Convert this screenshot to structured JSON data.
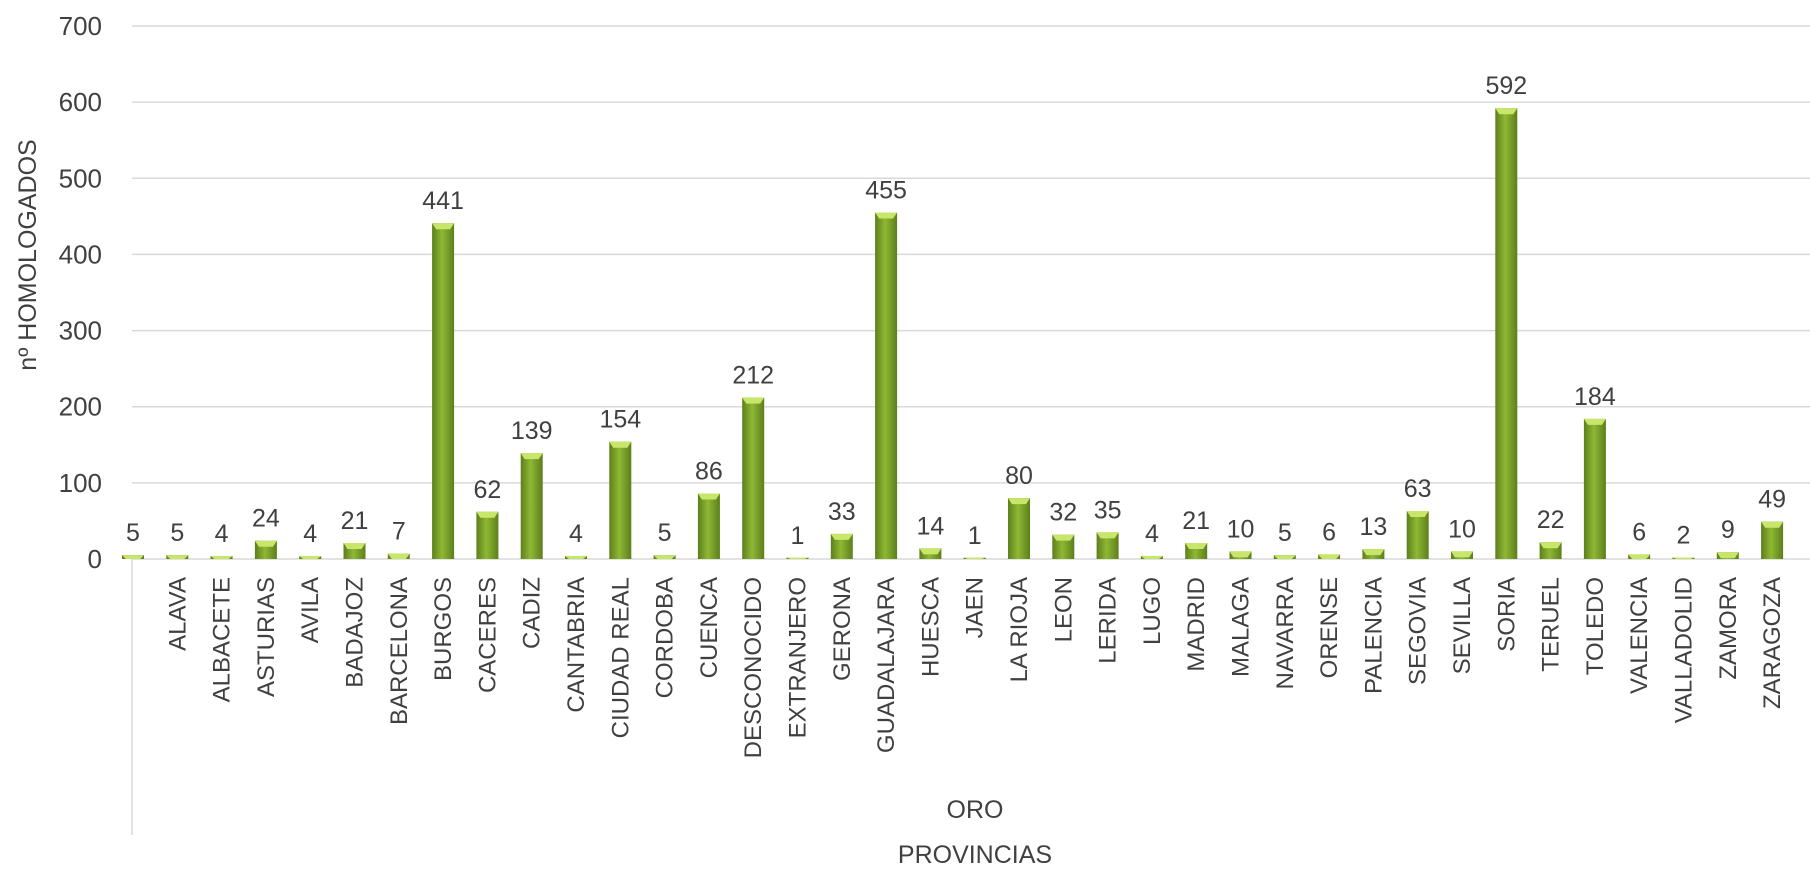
{
  "chart_data": {
    "type": "bar",
    "title": "",
    "xlabel": "PROVINCIAS",
    "ylabel": "nº HOMOLOGADOS",
    "group_label": "ORO",
    "ylim": [
      0,
      700
    ],
    "yticks": [
      0,
      100,
      200,
      300,
      400,
      500,
      600,
      700
    ],
    "grid": true,
    "legend": "none",
    "categories": [
      "",
      "ALAVA",
      "ALBACETE",
      "ASTURIAS",
      "AVILA",
      "BADAJOZ",
      "BARCELONA",
      "BURGOS",
      "CACERES",
      "CADIZ",
      "CANTABRIA",
      "CIUDAD REAL",
      "CORDOBA",
      "CUENCA",
      "DESCONOCIDO",
      "EXTRANJERO",
      "GERONA",
      "GUADALAJARA",
      "HUESCA",
      "JAEN",
      "LA RIOJA",
      "LEON",
      "LERIDA",
      "LUGO",
      "MADRID",
      "MALAGA",
      "NAVARRA",
      "ORENSE",
      "PALENCIA",
      "SEGOVIA",
      "SEVILLA",
      "SORIA",
      "TERUEL",
      "TOLEDO",
      "VALENCIA",
      "VALLADOLID",
      "ZAMORA",
      "ZARAGOZA"
    ],
    "values": [
      5,
      5,
      4,
      24,
      4,
      21,
      7,
      441,
      62,
      139,
      4,
      154,
      5,
      86,
      212,
      1,
      33,
      455,
      14,
      1,
      80,
      32,
      35,
      4,
      21,
      10,
      5,
      6,
      13,
      63,
      10,
      592,
      22,
      184,
      6,
      2,
      9,
      49
    ],
    "data_labels": [
      "5",
      "5",
      "4",
      "24",
      "4",
      "21",
      "7",
      "441",
      "62",
      "139",
      "4",
      "154",
      "5",
      "86",
      "212",
      "1",
      "33",
      "455",
      "14",
      "1",
      "80",
      "32",
      "35",
      "4",
      "21",
      "10",
      "5",
      "6",
      "13",
      "63",
      "10",
      "592",
      "22",
      "184",
      "6",
      "2",
      "9",
      "49"
    ],
    "colors": {
      "bar_light": "#c8e66a",
      "bar_mid": "#8fb833",
      "bar_dark": "#5c7f1c",
      "grid": "#d9d9d9",
      "axis": "#d9d9d9",
      "text": "#404040"
    }
  }
}
